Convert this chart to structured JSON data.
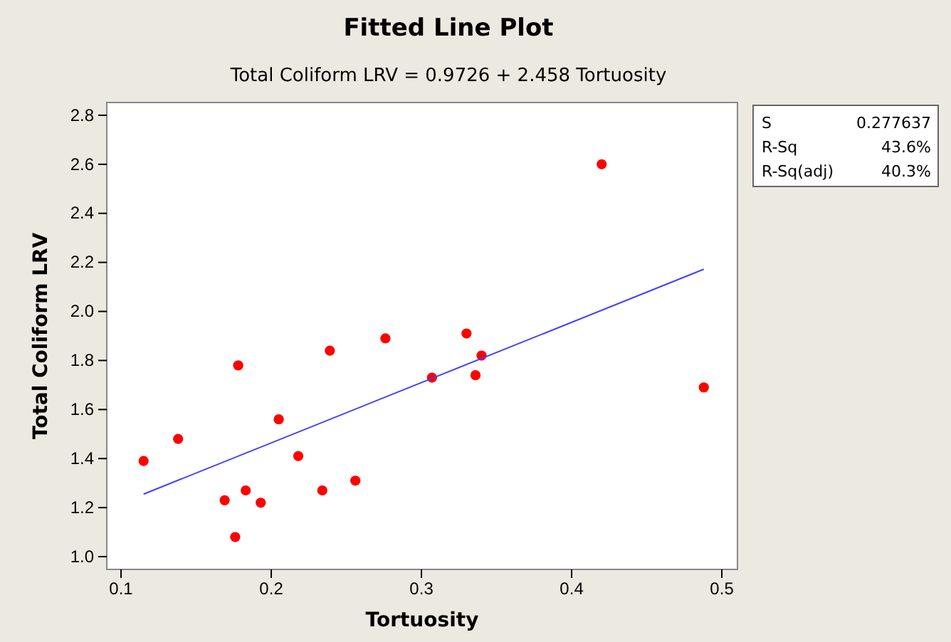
{
  "chart_data": {
    "type": "scatter",
    "title": "Fitted Line Plot",
    "subtitle": "Total Coliform LRV =  0.9726 + 2.458 Tortuosity",
    "xlabel": "Tortuosity",
    "ylabel": "Total Coliform LRV",
    "x": [
      0.115,
      0.138,
      0.169,
      0.178,
      0.176,
      0.183,
      0.193,
      0.205,
      0.218,
      0.234,
      0.239,
      0.256,
      0.276,
      0.307,
      0.33,
      0.336,
      0.34,
      0.42,
      0.488
    ],
    "series": [
      {
        "color": "#ff0000",
        "marker": "circle",
        "values": [
          1.39,
          1.48,
          1.23,
          1.78,
          1.08,
          1.27,
          1.22,
          1.56,
          1.41,
          1.27,
          1.84,
          1.31,
          1.89,
          1.73,
          1.91,
          1.74,
          1.82,
          2.6,
          1.69
        ]
      },
      {
        "type": "line",
        "color": "#4040ff",
        "line_style": "solid",
        "marker": "none",
        "x": [
          0.115,
          0.488
        ],
        "values": [
          1.255,
          2.172
        ]
      }
    ],
    "xlim": [
      0.0905,
      0.5104
    ],
    "xticks": [
      0.1,
      0.2,
      0.3,
      0.4,
      0.5
    ],
    "ylim": [
      0.948,
      2.852
    ],
    "yticks": [
      {
        "value": 1,
        "label": "1.0"
      },
      {
        "value": 1.2,
        "label": "1.2"
      },
      {
        "value": 1.4,
        "label": "1.4"
      },
      {
        "value": 1.6,
        "label": "1.6"
      },
      {
        "value": 1.8,
        "label": "1.8"
      },
      {
        "value": 2,
        "label": "2.0"
      },
      {
        "value": 2.2,
        "label": "2.2"
      },
      {
        "value": 2.4,
        "label": "2.4"
      },
      {
        "value": 2.6,
        "label": "2.6"
      },
      {
        "value": 2.8,
        "label": "2.8"
      }
    ],
    "grid": false,
    "annotations": [
      "S",
      "0.277637",
      "R-Sq",
      "43.6%",
      "R-Sq(adj)",
      "40.3%"
    ]
  }
}
